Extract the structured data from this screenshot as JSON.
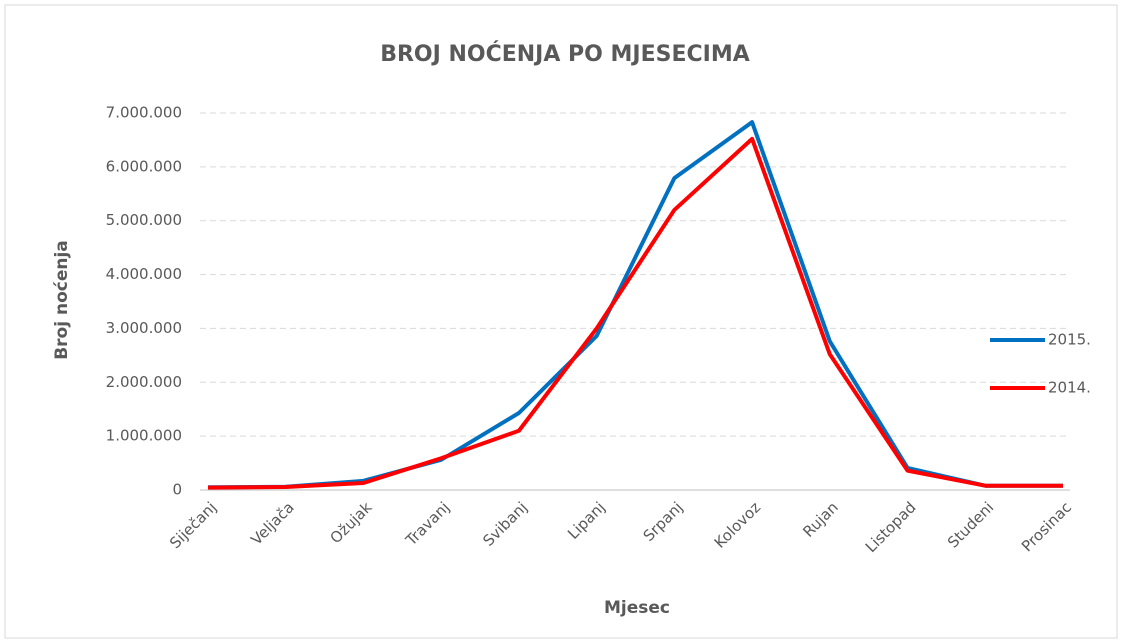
{
  "chart_data": {
    "type": "line",
    "title": "BROJ NOĆENJA PO MJESECIMA",
    "x_label": "Mjesec",
    "y_label": "Broj noćenja",
    "categories": [
      "Siječanj",
      "Veljača",
      "Ožujak",
      "Travanj",
      "Svibanj",
      "Lipanj",
      "Srpanj",
      "Kolovoz",
      "Rujan",
      "Listopad",
      "Studeni",
      "Prosinac"
    ],
    "series": [
      {
        "name": "2015.",
        "color": "#0070c0",
        "values": [
          50000,
          60000,
          170000,
          560000,
          1430000,
          2860000,
          5790000,
          6830000,
          2760000,
          410000,
          80000,
          80000
        ]
      },
      {
        "name": "2014.",
        "color": "#ff0000",
        "values": [
          45000,
          55000,
          130000,
          590000,
          1100000,
          3000000,
          5200000,
          6520000,
          2520000,
          360000,
          80000,
          80000
        ]
      }
    ],
    "ylim": [
      0,
      7000000
    ],
    "yticks": [
      0,
      {
        "value": 1000000,
        "label": "1.000.000"
      },
      {
        "value": 2000000,
        "label": "2.000.000"
      },
      {
        "value": 3000000,
        "label": "3.000.000"
      },
      {
        "value": 4000000,
        "label": "4.000.000"
      },
      {
        "value": 5000000,
        "label": "5.000.000"
      },
      {
        "value": 6000000,
        "label": "6.000.000"
      },
      {
        "value": 7000000,
        "label": "7.000.000"
      }
    ],
    "grid": true,
    "legend": "right"
  }
}
